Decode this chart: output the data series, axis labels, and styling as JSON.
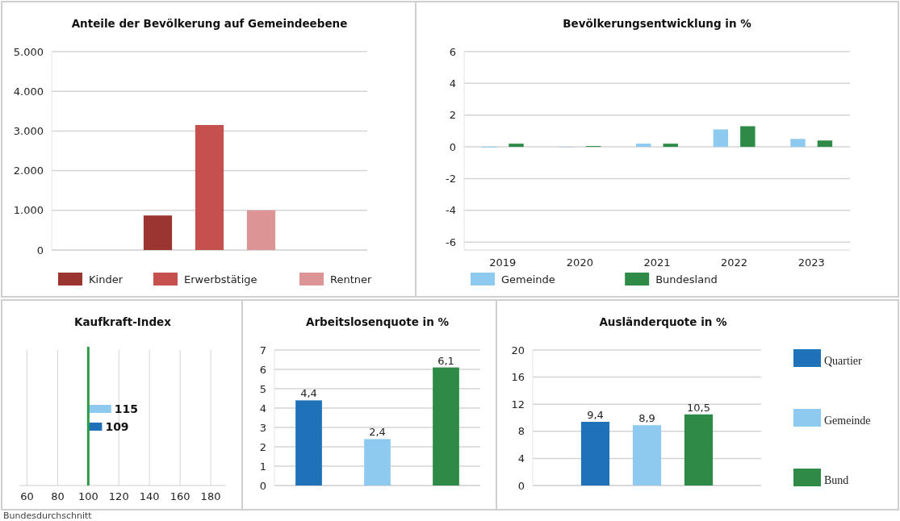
{
  "chart_data": [
    {
      "type": "bar",
      "title": "Anteile der Bevölkerung auf Gemeindeebene",
      "categories": [
        null
      ],
      "series": [
        {
          "name": "Kinder",
          "color": "#9b3531",
          "values": [
            870
          ]
        },
        {
          "name": "Erwerbstätige",
          "color": "#c5504d",
          "values": [
            3150
          ]
        },
        {
          "name": "Rentner",
          "color": "#dc9494",
          "values": [
            1000
          ]
        }
      ],
      "ylim": [
        0,
        5000
      ],
      "yticks": [
        0,
        {
          "value": 1000,
          "label": "1.000"
        },
        {
          "value": 2000,
          "label": "2.000"
        },
        {
          "value": 3000,
          "label": "3.000"
        },
        {
          "value": 4000,
          "label": "4.000"
        },
        {
          "value": 5000,
          "label": "5.000"
        }
      ],
      "grid": "y",
      "legend": "bottom"
    },
    {
      "type": "bar",
      "title": "Bevölkerungsentwicklung in %",
      "categories": [
        "2019",
        "2020",
        "2021",
        "2022",
        "2023"
      ],
      "series": [
        {
          "name": "Gemeinde",
          "color": "#8ecaf0",
          "values": [
            -0.05,
            0,
            0.2,
            1.1,
            0.5
          ]
        },
        {
          "name": "Bundesland",
          "color": "#2e8b47",
          "values": [
            0.2,
            0.05,
            0.2,
            1.3,
            0.4
          ]
        }
      ],
      "ylim": [
        -6.5,
        6
      ],
      "yticks": [
        -6,
        -4,
        -2,
        0,
        2,
        4,
        6
      ],
      "grid": "y",
      "legend": "bottom"
    },
    {
      "type": "bar",
      "orientation": "horizontal",
      "title": "Kaufkraft-Index",
      "categories": [
        null,
        null
      ],
      "values": [
        15,
        9
      ],
      "base": [
        100,
        100
      ],
      "colors": [
        "#8ecaf0",
        "#1f72b8"
      ],
      "value_labels": [
        "115",
        "109"
      ],
      "xlim": [
        55,
        190
      ],
      "xticks": [
        60,
        80,
        100,
        120,
        140,
        160,
        180
      ],
      "grid": "x",
      "ref_lines": [
        {
          "axis": "x",
          "value": 100,
          "label": "Bundesdurchschnitt",
          "color": "#2e9a47"
        }
      ]
    },
    {
      "type": "bar",
      "title": "Arbeitslosenquote in %",
      "categories": [
        null,
        null,
        null
      ],
      "values": [
        4.4,
        2.4,
        6.1
      ],
      "colors": [
        "#1f72b8",
        "#8ecaf0",
        "#2e8b47"
      ],
      "value_labels": [
        "4,4",
        "2,4",
        "6,1"
      ],
      "ylim": [
        0,
        7
      ],
      "yticks": [
        0,
        1,
        2,
        3,
        4,
        5,
        6,
        7
      ],
      "grid": "y"
    },
    {
      "type": "bar",
      "title": "Ausländerquote in %",
      "categories": [
        null
      ],
      "series": [
        {
          "name": "Quartier",
          "color": "#1f72b8",
          "values": [
            9.4
          ],
          "value_labels": [
            "9,4"
          ]
        },
        {
          "name": "Gemeinde",
          "color": "#8ecaf0",
          "values": [
            8.9
          ],
          "value_labels": [
            "8,9"
          ]
        },
        {
          "name": "Bund",
          "color": "#2e8b47",
          "values": [
            10.5
          ],
          "value_labels": [
            "10,5"
          ]
        }
      ],
      "ylim": [
        0,
        20
      ],
      "yticks": [
        0,
        4,
        8,
        12,
        16,
        20
      ],
      "grid": "y",
      "legend": "right"
    }
  ]
}
